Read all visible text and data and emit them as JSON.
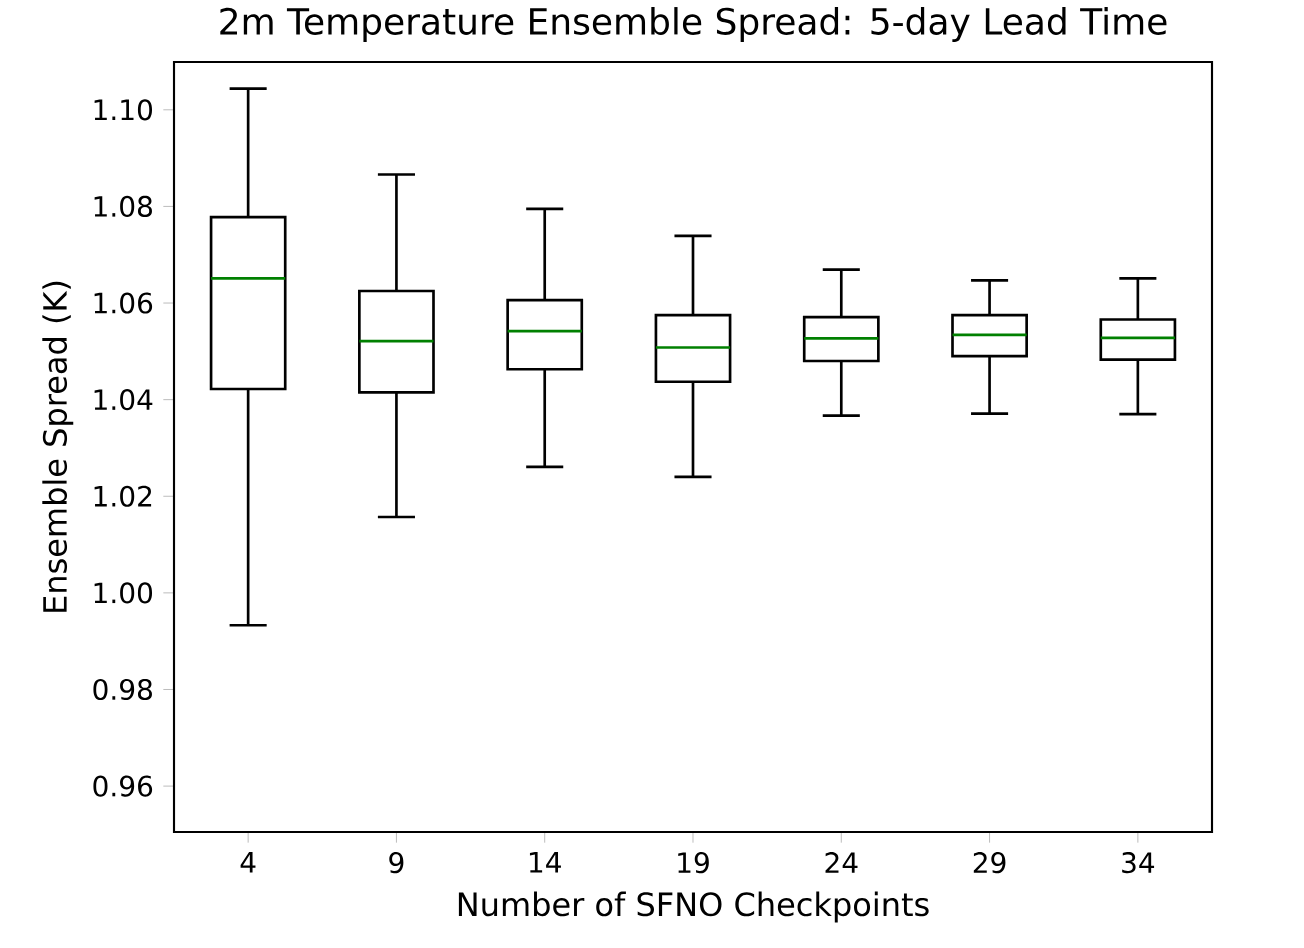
{
  "chart_data": {
    "type": "box",
    "title": "2m Temperature Ensemble Spread: 5-day Lead Time",
    "xlabel": "Number of SFNO Checkpoints",
    "ylabel": "Ensemble Spread (K)",
    "categories": [
      "4",
      "9",
      "14",
      "19",
      "24",
      "29",
      "34"
    ],
    "ylim": [
      0.9505,
      1.1099
    ],
    "yticks": [
      0.96,
      0.98,
      {
        "value": 1.0,
        "label": "1.00"
      },
      1.02,
      1.04,
      1.06,
      1.08,
      {
        "value": 1.1,
        "label": "1.10"
      }
    ],
    "series": [
      {
        "color": "#000000",
        "boxes": [
          {
            "low": 0.9933,
            "q1": 1.0422,
            "median": 1.0651,
            "q3": 1.0778,
            "high": 1.1044
          },
          {
            "low": 1.0157,
            "q1": 1.0415,
            "median": 1.0521,
            "q3": 1.0625,
            "high": 1.0866
          },
          {
            "low": 1.0261,
            "q1": 1.0463,
            "median": 1.0542,
            "q3": 1.0606,
            "high": 1.0795
          },
          {
            "low": 1.024,
            "q1": 1.0437,
            "median": 1.0508,
            "q3": 1.0575,
            "high": 1.0739
          },
          {
            "low": 1.0367,
            "q1": 1.048,
            "median": 1.0527,
            "q3": 1.0571,
            "high": 1.0669
          },
          {
            "low": 1.0371,
            "q1": 1.049,
            "median": 1.0534,
            "q3": 1.0575,
            "high": 1.0647
          },
          {
            "low": 1.037,
            "q1": 1.0483,
            "median": 1.0528,
            "q3": 1.0566,
            "high": 1.0651
          }
        ]
      }
    ]
  }
}
